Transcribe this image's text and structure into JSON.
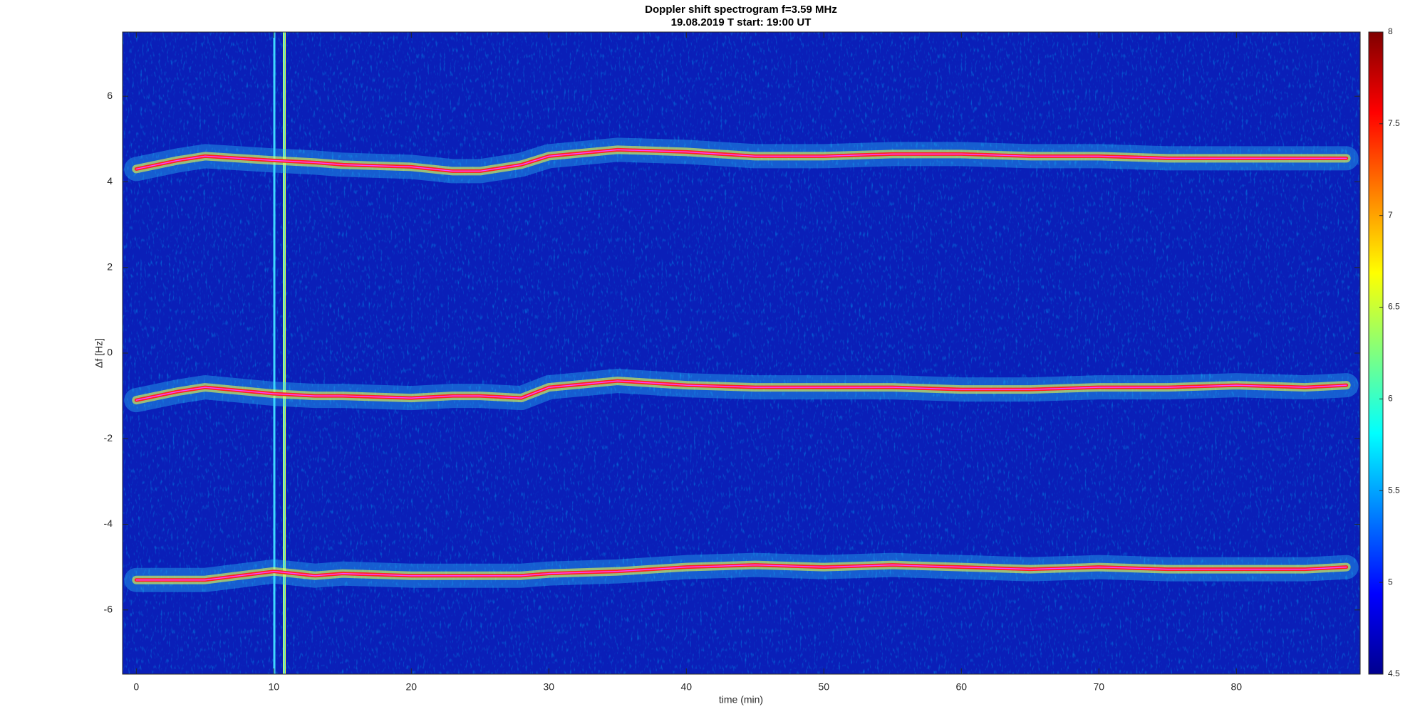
{
  "chart_data": {
    "type": "spectrogram",
    "title": "Doppler shift spectrogram f=3.59 MHz",
    "subtitle": "19.08.2019    T start: 19:00 UT",
    "x_label": "time (min)",
    "y_label": "Δf [Hz]",
    "xlim": [
      -1,
      89
    ],
    "xticks": [
      0,
      10,
      20,
      30,
      40,
      50,
      60,
      70,
      80
    ],
    "ylim": [
      -7.5,
      7.5
    ],
    "yticks": [
      -6,
      -4,
      -2,
      0,
      2,
      4,
      6
    ],
    "colormap": "jet",
    "colorbar": {
      "lim": [
        4.5,
        8
      ],
      "ticks": [
        4.5,
        5,
        5.5,
        6,
        6.5,
        7,
        7.5,
        8
      ]
    },
    "x": [
      0,
      3,
      5,
      10,
      13,
      15,
      20,
      23,
      25,
      28,
      30,
      35,
      40,
      45,
      50,
      55,
      60,
      65,
      70,
      75,
      80,
      85,
      88
    ],
    "series": [
      {
        "color": "#ff2020",
        "values": [
          4.3,
          4.5,
          4.6,
          4.5,
          4.45,
          4.4,
          4.35,
          4.25,
          4.25,
          4.4,
          4.6,
          4.75,
          4.7,
          4.6,
          4.6,
          4.65,
          4.65,
          4.6,
          4.6,
          4.55,
          4.55,
          4.55,
          4.55
        ]
      },
      {
        "color": "#ff2020",
        "values": [
          -1.1,
          -0.9,
          -0.8,
          -0.95,
          -1.0,
          -1.0,
          -1.05,
          -1.0,
          -1.0,
          -1.05,
          -0.8,
          -0.65,
          -0.75,
          -0.8,
          -0.8,
          -0.8,
          -0.85,
          -0.85,
          -0.8,
          -0.8,
          -0.75,
          -0.8,
          -0.75
        ]
      },
      {
        "color": "#ff2020",
        "values": [
          -5.3,
          -5.3,
          -5.3,
          -5.1,
          -5.2,
          -5.15,
          -5.2,
          -5.2,
          -5.2,
          -5.2,
          -5.15,
          -5.1,
          -5.0,
          -4.95,
          -5.0,
          -4.95,
          -5.0,
          -5.05,
          -5.0,
          -5.05,
          -5.05,
          -5.05,
          -5.0
        ]
      }
    ]
  }
}
